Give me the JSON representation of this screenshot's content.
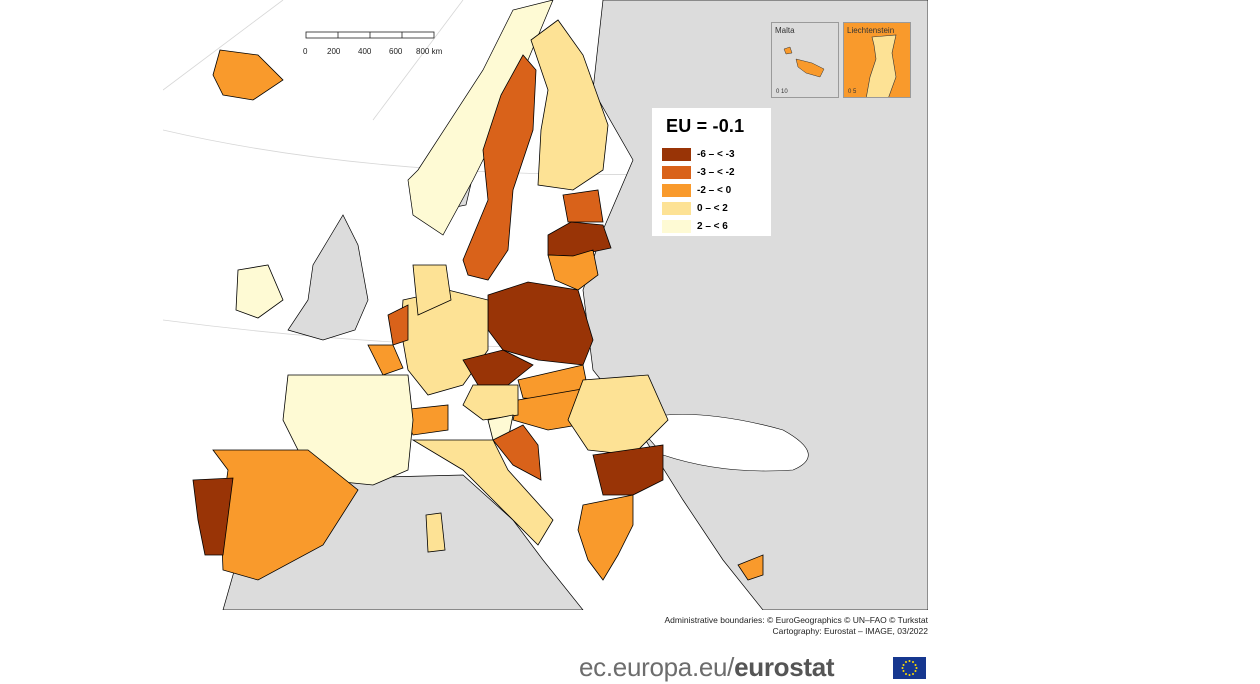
{
  "map": {
    "legend_title": "EU = -0.1",
    "legend": [
      {
        "label": "-6 – < -3",
        "color": "#993406"
      },
      {
        "label": "-3 – < -2",
        "color": "#d9621a"
      },
      {
        "label": "-2 – < 0",
        "color": "#f99a2c"
      },
      {
        "label": "0 – < 2",
        "color": "#fde295"
      },
      {
        "label": "2 – < 6",
        "color": "#fefad4"
      }
    ],
    "scale_labels": [
      "0",
      "200",
      "400",
      "600",
      "800 km"
    ],
    "insets": [
      {
        "title": "Malta",
        "scale": "0   10"
      },
      {
        "title": "Liechtenstein",
        "scale": "0   5"
      }
    ],
    "credits": [
      "Administrative boundaries: © EuroGeographics © UN–FAO © Turkstat",
      "Cartography: Eurostat – IMAGE, 03/2022"
    ],
    "non_eu_color": "#dcdcdc",
    "sea_color": "#ffffff"
  },
  "footer": {
    "url_prefix": "ec.europa.eu/",
    "brand": "eurostat"
  }
}
